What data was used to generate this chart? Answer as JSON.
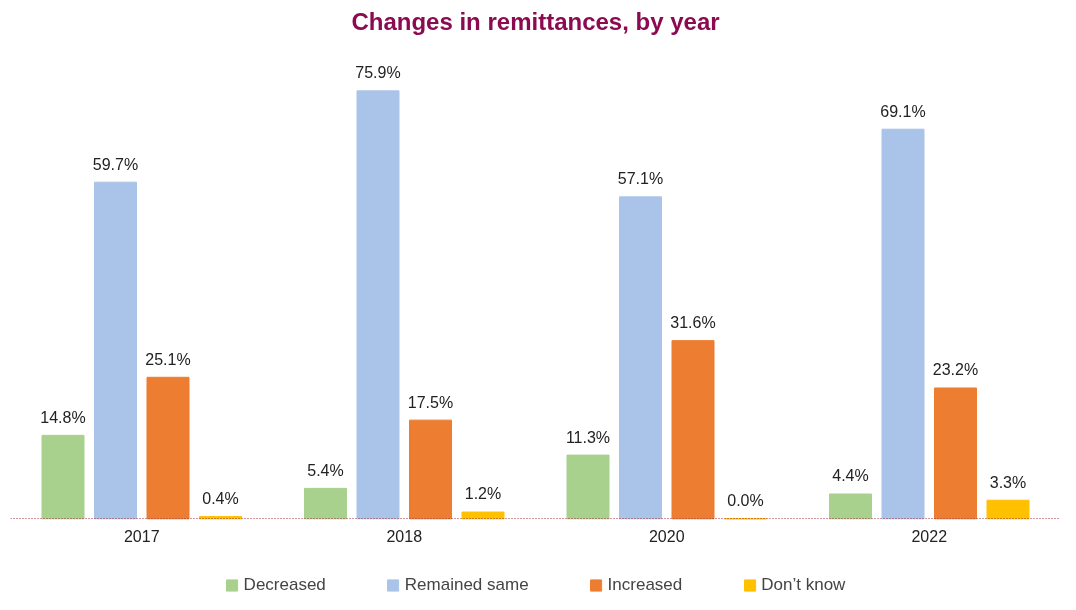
{
  "chart_data": {
    "type": "bar",
    "title": "Changes in remittances, by year",
    "categories": [
      "2017",
      "2018",
      "2020",
      "2022"
    ],
    "series": [
      {
        "name": "Decreased",
        "color": "#a9d18e",
        "values": [
          14.8,
          5.4,
          11.3,
          4.4
        ],
        "value_labels": [
          "14.8%",
          "5.4%",
          "11.3%",
          "4.4%"
        ]
      },
      {
        "name": "Remained same",
        "color": "#a9c4e8",
        "values": [
          59.7,
          75.9,
          57.1,
          69.1
        ],
        "value_labels": [
          "59.7%",
          "75.9%",
          "57.1%",
          "69.1%"
        ]
      },
      {
        "name": "Increased",
        "color": "#ed7d31",
        "values": [
          25.1,
          17.5,
          31.6,
          23.2
        ],
        "value_labels": [
          "25.1%",
          "17.5%",
          "31.6%",
          "23.2%"
        ]
      },
      {
        "name": "Don’t know",
        "color": "#ffc000",
        "values": [
          0.4,
          1.2,
          0.0,
          3.3
        ],
        "value_labels": [
          "0.4%",
          "1.2%",
          "0.0%",
          "3.3%"
        ]
      }
    ],
    "grid": false,
    "legend": "bottom"
  }
}
